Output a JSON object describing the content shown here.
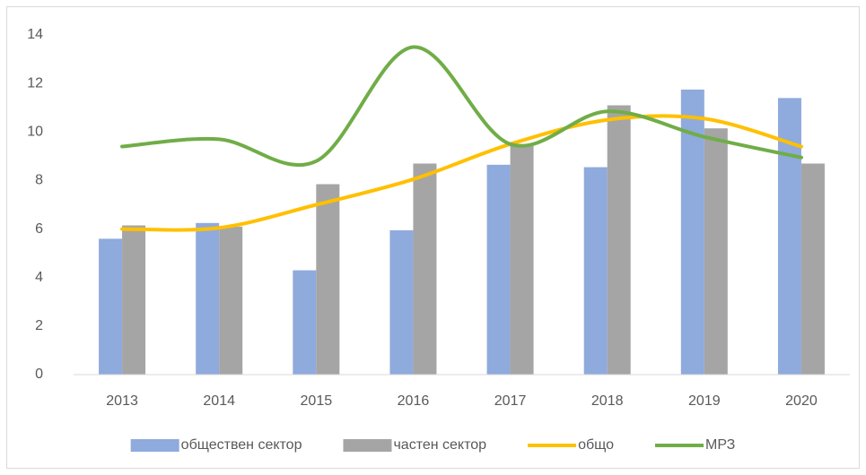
{
  "chart_data": {
    "type": "bar-line",
    "categories": [
      "2013",
      "2014",
      "2015",
      "2016",
      "2017",
      "2018",
      "2019",
      "2020"
    ],
    "series": [
      {
        "name": "обществен сектор",
        "type": "bar",
        "color": "#8faadc",
        "values": [
          5.6,
          6.25,
          4.3,
          5.95,
          8.65,
          8.55,
          11.75,
          11.4
        ]
      },
      {
        "name": "частен сектор",
        "type": "bar",
        "color": "#a5a5a5",
        "values": [
          6.15,
          6.1,
          7.85,
          8.7,
          9.5,
          11.1,
          10.15,
          8.7
        ]
      },
      {
        "name": "общо",
        "type": "line",
        "smooth": true,
        "color": "#ffc000",
        "values": [
          6.0,
          6.05,
          7.0,
          8.05,
          9.5,
          10.5,
          10.55,
          9.4
        ]
      },
      {
        "name": "МРЗ",
        "type": "line",
        "smooth": true,
        "color": "#70ad47",
        "values": [
          9.4,
          9.7,
          8.8,
          13.5,
          9.5,
          10.85,
          9.8,
          8.95
        ]
      }
    ],
    "ylim": [
      0,
      14
    ],
    "yticks": [
      0,
      2,
      4,
      6,
      8,
      10,
      12,
      14
    ],
    "grid": false,
    "legend": "bottom"
  }
}
